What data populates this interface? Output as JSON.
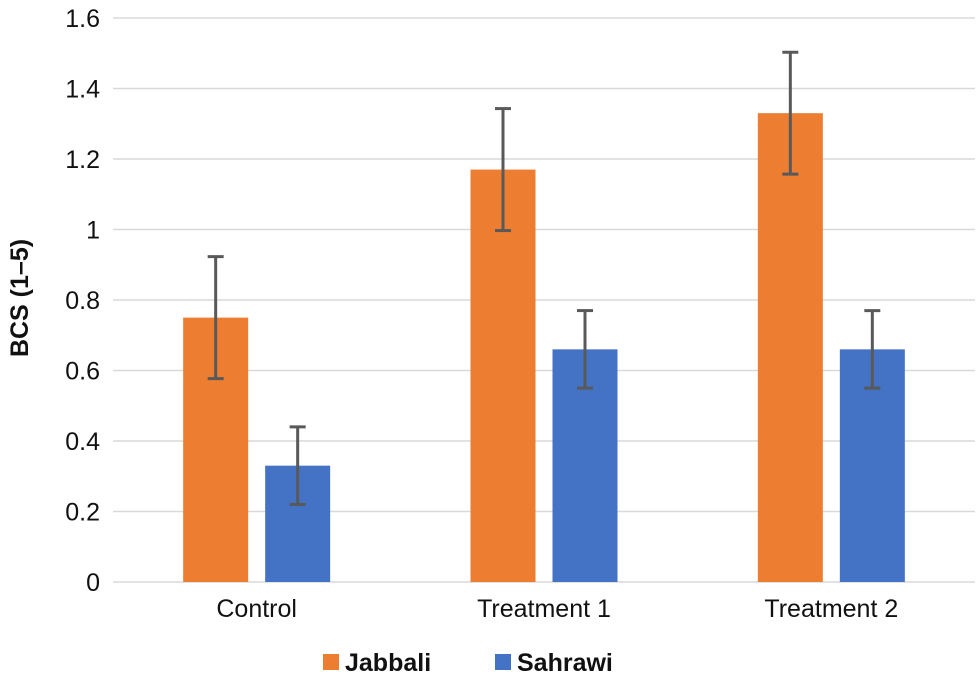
{
  "chart_data": {
    "type": "bar",
    "categories": [
      "Control",
      "Treatment 1",
      "Treatment 2"
    ],
    "series": [
      {
        "name": "Jabbali",
        "color": "#ed7d31",
        "values": [
          0.75,
          1.17,
          1.33
        ],
        "error": [
          0.173,
          0.173,
          0.173
        ]
      },
      {
        "name": "Sahrawi",
        "color": "#4472c4",
        "values": [
          0.33,
          0.66,
          0.66
        ],
        "error": [
          0.11,
          0.11,
          0.11
        ]
      }
    ],
    "ylabel": "BCS (1–5)",
    "ylim": [
      0,
      1.6
    ],
    "yticks": [
      0,
      0.2,
      0.4,
      0.6,
      0.8,
      1,
      1.2,
      1.4,
      1.6
    ],
    "ytick_labels": [
      "0",
      "0.2",
      "0.4",
      "0.6",
      "0.8",
      "1",
      "1.2",
      "1.4",
      "1.6"
    ],
    "grid": true,
    "legend_position": "bottom"
  }
}
